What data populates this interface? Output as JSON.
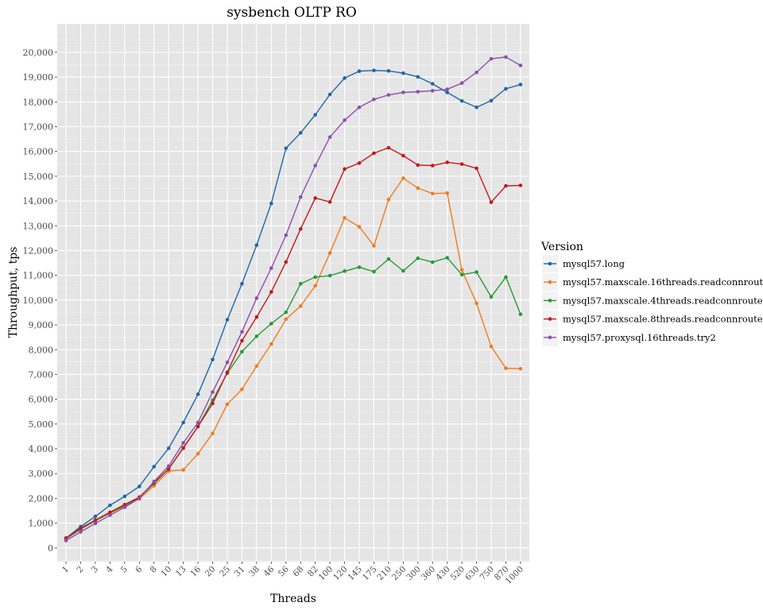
{
  "chart_data": {
    "type": "line",
    "title": "sysbench OLTP RO",
    "xlabel": "Threads",
    "ylabel": "Throughput, tps",
    "ylim": [
      -550,
      21150
    ],
    "yticks": [
      0,
      1000,
      2000,
      3000,
      4000,
      5000,
      6000,
      7000,
      8000,
      9000,
      10000,
      11000,
      12000,
      13000,
      14000,
      15000,
      16000,
      17000,
      18000,
      19000,
      20000
    ],
    "ytick_labels": [
      "0",
      "1,000",
      "2,000",
      "3,000",
      "4,000",
      "5,000",
      "6,000",
      "7,000",
      "8,000",
      "9,000",
      "10,000",
      "11,000",
      "12,000",
      "13,000",
      "14,000",
      "15,000",
      "16,000",
      "17,000",
      "18,000",
      "19,000",
      "20,000"
    ],
    "categories": [
      "1",
      "2",
      "3",
      "4",
      "5",
      "6",
      "8",
      "10",
      "13",
      "16",
      "20",
      "25",
      "31",
      "38",
      "46",
      "56",
      "68",
      "82",
      "100",
      "120",
      "145",
      "175",
      "210",
      "250",
      "300",
      "360",
      "430",
      "520",
      "630",
      "750",
      "870",
      "1000"
    ],
    "grid": true,
    "legend_title": "Version",
    "legend_position": "right",
    "series": [
      {
        "name": "mysql57.long",
        "color": "#1f66a8",
        "values": [
          400,
          860,
          1270,
          1720,
          2080,
          2480,
          3280,
          4020,
          5060,
          6200,
          7600,
          9210,
          10660,
          12220,
          13900,
          16130,
          16750,
          17480,
          18300,
          18960,
          19240,
          19270,
          19250,
          19160,
          19010,
          18730,
          18380,
          18040,
          17780,
          18050,
          18530,
          18700
        ]
      },
      {
        "name": "mysql57.maxscale.16threads.readconnroute",
        "color": "#f07c1e",
        "values": [
          370,
          750,
          1090,
          1400,
          1680,
          1980,
          2510,
          3100,
          3150,
          3800,
          4620,
          5800,
          6400,
          7340,
          8230,
          9230,
          9760,
          10580,
          11900,
          13320,
          12960,
          12190,
          14060,
          14920,
          14520,
          14300,
          14320,
          11220,
          9870,
          8130,
          7250,
          7230
        ]
      },
      {
        "name": "mysql57.maxscale.4threads.readconnroute",
        "color": "#2a9934",
        "values": [
          380,
          760,
          1100,
          1420,
          1700,
          2030,
          2600,
          3200,
          4020,
          4900,
          5960,
          7050,
          7920,
          8540,
          9050,
          9510,
          10660,
          10930,
          10990,
          11170,
          11330,
          11150,
          11660,
          11180,
          11690,
          11530,
          11710,
          11030,
          11130,
          10130,
          10930,
          9430
        ]
      },
      {
        "name": "mysql57.maxscale.8threads.readconnroute",
        "color": "#c8171e",
        "values": [
          390,
          800,
          1120,
          1440,
          1750,
          2050,
          2640,
          3180,
          4040,
          4900,
          5830,
          7090,
          8360,
          9320,
          10330,
          11540,
          12870,
          14120,
          13960,
          15290,
          15530,
          15930,
          16150,
          15830,
          15450,
          15430,
          15560,
          15490,
          15320,
          13950,
          14610,
          14630
        ]
      },
      {
        "name": "mysql57.proxysql.16threads.try2",
        "color": "#8e4fad",
        "values": [
          300,
          650,
          990,
          1320,
          1640,
          2000,
          2680,
          3300,
          4240,
          5060,
          6290,
          7490,
          8720,
          10080,
          11290,
          12620,
          14160,
          15430,
          16580,
          17260,
          17780,
          18100,
          18280,
          18380,
          18410,
          18450,
          18510,
          18760,
          19190,
          19740,
          19810,
          19470
        ]
      }
    ]
  }
}
